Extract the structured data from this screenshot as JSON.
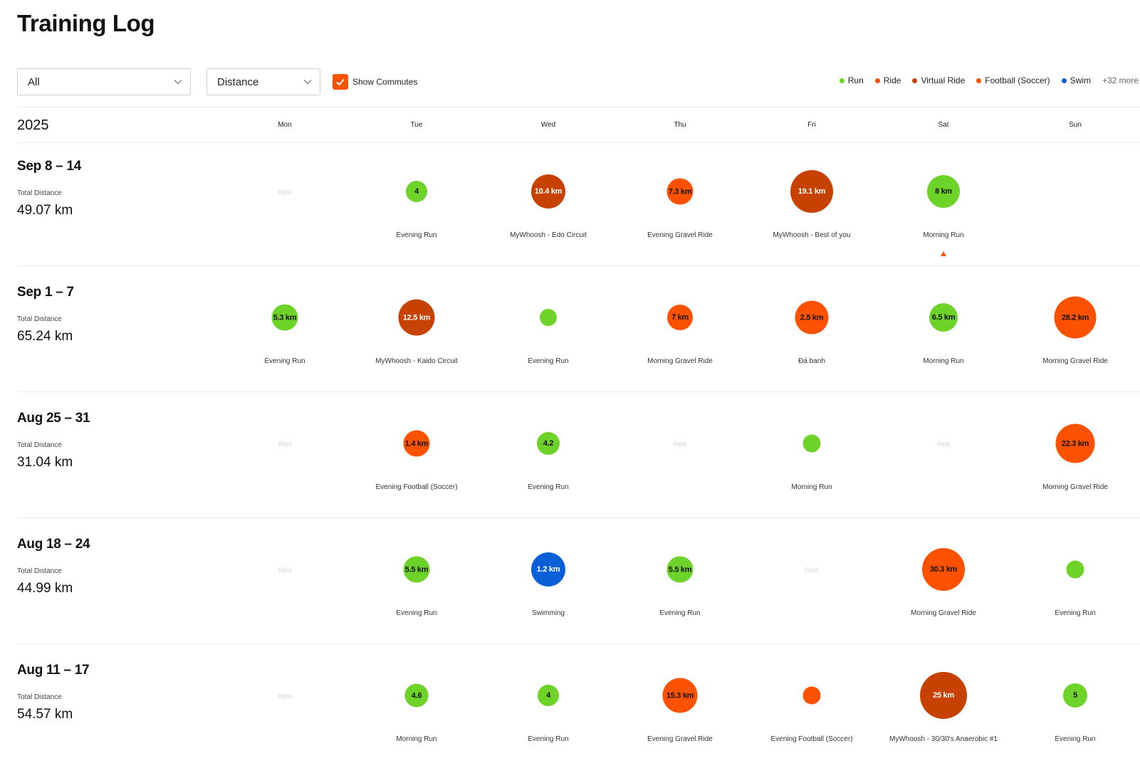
{
  "title": "Training Log",
  "filters": {
    "sport": "All",
    "metric": "Distance",
    "commute_label": "Show Commutes",
    "commute_checked": true
  },
  "colors": {
    "run": "#6dd329",
    "ride": "#fc5200",
    "virtual_ride": "#c74100",
    "football": "#fc5200",
    "swim": "#0a5fd6",
    "accent": "#fc5200"
  },
  "legend": {
    "items": [
      {
        "label": "Run",
        "color": "#6dd329"
      },
      {
        "label": "Ride",
        "color": "#fc5200"
      },
      {
        "label": "Virtual Ride",
        "color": "#c74100"
      },
      {
        "label": "Football (Soccer)",
        "color": "#fc5200"
      },
      {
        "label": "Swim",
        "color": "#0a5fd6"
      }
    ],
    "more": "+32 more"
  },
  "calendar": {
    "year": "2025",
    "days": [
      "Mon",
      "Tue",
      "Wed",
      "Thu",
      "Fri",
      "Sat",
      "Sun"
    ],
    "rest_label": "Rest",
    "total_label": "Total Distance"
  },
  "weeks": [
    {
      "range": "Sep 8 – 14",
      "total": "49.07 km",
      "marker_day": 5,
      "days": [
        {
          "rest": true
        },
        {
          "label": "4",
          "name": "Evening Run",
          "type": "run",
          "size": 30
        },
        {
          "label": "10.4 km",
          "name": "MyWhoosh - Edo Circuit",
          "type": "virtual_ride",
          "size": 48
        },
        {
          "label": "7.3 km",
          "name": "Evening Gravel Ride",
          "type": "ride",
          "size": 37
        },
        {
          "label": "19.1 km",
          "name": "MyWhoosh - Best of you",
          "type": "virtual_ride",
          "size": 60
        },
        {
          "label": "8 km",
          "name": "Morning Run",
          "type": "run",
          "size": 46
        },
        {
          "empty": true
        }
      ]
    },
    {
      "range": "Sep 1 – 7",
      "total": "65.24 km",
      "days": [
        {
          "label": "5.3 km",
          "name": "Evening Run",
          "type": "run",
          "size": 37
        },
        {
          "label": "12.5 km",
          "name": "MyWhoosh - Kaido Circuit",
          "type": "virtual_ride",
          "size": 51
        },
        {
          "label": "",
          "name": "Evening Run",
          "type": "run",
          "size": 24
        },
        {
          "label": "7 km",
          "name": "Morning Gravel Ride",
          "type": "ride",
          "size": 36
        },
        {
          "label": "2.5 km",
          "name": "Đá banh",
          "type": "football",
          "size": 47
        },
        {
          "label": "6.5 km",
          "name": "Morning Run",
          "type": "run",
          "size": 40
        },
        {
          "label": "28.2 km",
          "name": "Morning Gravel Ride",
          "type": "ride",
          "size": 59
        }
      ]
    },
    {
      "range": "Aug 25 – 31",
      "total": "31.04 km",
      "days": [
        {
          "rest": true
        },
        {
          "label": "1.4 km",
          "name": "Evening Football (Soccer)",
          "type": "football",
          "size": 37
        },
        {
          "label": "4.2",
          "name": "Evening Run",
          "type": "run",
          "size": 32
        },
        {
          "rest": true
        },
        {
          "label": "",
          "name": "Morning Run",
          "type": "run",
          "size": 25
        },
        {
          "rest": true
        },
        {
          "label": "22.3 km",
          "name": "Morning Gravel Ride",
          "type": "ride",
          "size": 55
        }
      ]
    },
    {
      "range": "Aug 18 – 24",
      "total": "44.99 km",
      "days": [
        {
          "rest": true
        },
        {
          "label": "5.5 km",
          "name": "Evening Run",
          "type": "run",
          "size": 37
        },
        {
          "label": "1.2 km",
          "name": "Swimming",
          "type": "swim",
          "size": 48
        },
        {
          "label": "5.5 km",
          "name": "Evening Run",
          "type": "run",
          "size": 37
        },
        {
          "rest": true
        },
        {
          "label": "30.3 km",
          "name": "Morning Gravel Ride",
          "type": "ride",
          "size": 60
        },
        {
          "label": "",
          "name": "Evening Run",
          "type": "run",
          "size": 25
        }
      ]
    },
    {
      "range": "Aug 11 – 17",
      "total": "54.57 km",
      "days": [
        {
          "rest": true
        },
        {
          "label": "4.6",
          "name": "Morning Run",
          "type": "run",
          "size": 33
        },
        {
          "label": "4",
          "name": "Evening Run",
          "type": "run",
          "size": 30
        },
        {
          "label": "15.3 km",
          "name": "Evening Gravel Ride",
          "type": "ride",
          "size": 49
        },
        {
          "label": "",
          "name": "Evening Football (Soccer)",
          "type": "football",
          "size": 25
        },
        {
          "label": "25 km",
          "name": "MyWhoosh - 30/30's Anaerobic #1",
          "type": "virtual_ride",
          "size": 66
        },
        {
          "label": "5",
          "name": "Evening Run",
          "type": "run",
          "size": 34
        }
      ]
    }
  ]
}
